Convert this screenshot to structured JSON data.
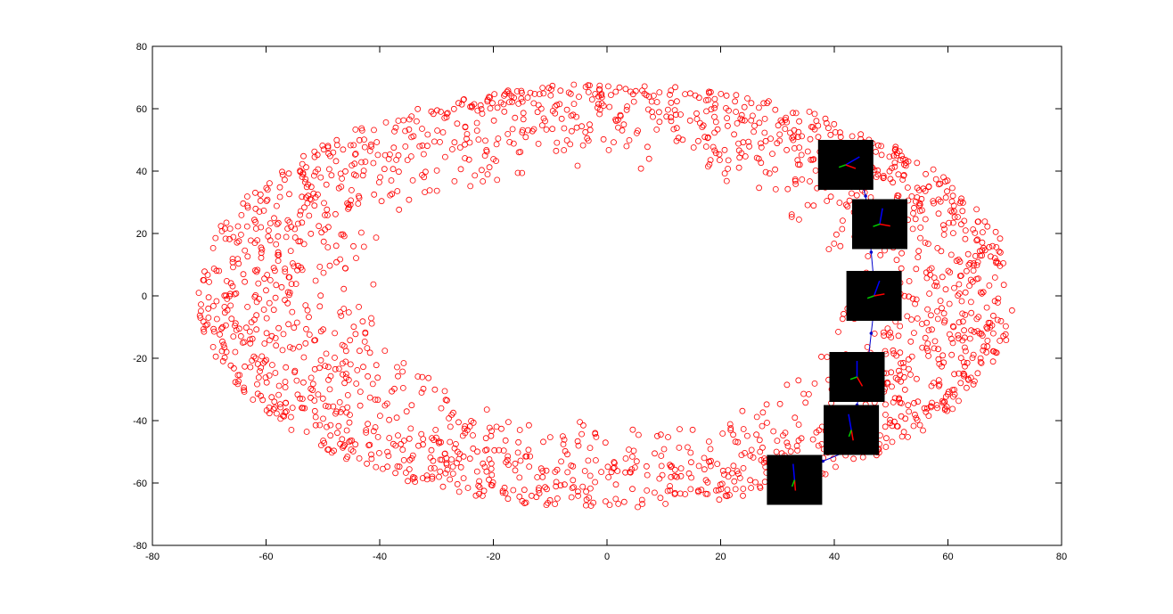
{
  "chart_data": {
    "type": "scatter",
    "title": "",
    "xlabel": "",
    "ylabel": "",
    "xlim": [
      -80,
      80
    ],
    "ylim": [
      -80,
      80
    ],
    "grid": false,
    "legend": "none",
    "x_ticks": [
      "-80",
      "-60",
      "-40",
      "-20",
      "0",
      "20",
      "40",
      "60",
      "80"
    ],
    "y_ticks": [
      "-80",
      "-60",
      "-40",
      "-20",
      "0",
      "20",
      "40",
      "60",
      "80"
    ],
    "series": [
      {
        "marker": "circle-open",
        "color": "#ff0000",
        "region": {
          "shape": "elliptical-annulus",
          "center": [
            0,
            0
          ],
          "outer_radii": [
            72,
            68
          ],
          "inner_radii": [
            40,
            40
          ],
          "approx_point_count": 2000
        }
      },
      {
        "marker": "line-with-points",
        "color": "#0000cc",
        "points": [
          [
            33,
            -57
          ],
          [
            38,
            -53
          ],
          [
            42,
            -50
          ],
          [
            44,
            -43
          ],
          [
            44,
            -35
          ],
          [
            45,
            -27
          ],
          [
            46,
            -20
          ],
          [
            46.5,
            -12
          ],
          [
            47,
            -4
          ],
          [
            47,
            4
          ],
          [
            46.5,
            14
          ],
          [
            46,
            24
          ],
          [
            45.5,
            32
          ],
          [
            44,
            42
          ]
        ]
      }
    ],
    "insets": [
      {
        "x": 33,
        "y": -59,
        "marker_angles": [
          95,
          275,
          250
        ]
      },
      {
        "x": 43,
        "y": -43,
        "marker_angles": [
          100,
          280,
          250
        ]
      },
      {
        "x": 44,
        "y": -26,
        "marker_angles": [
          90,
          300,
          200
        ]
      },
      {
        "x": 47,
        "y": 0,
        "marker_angles": [
          70,
          10,
          200
        ]
      },
      {
        "x": 48,
        "y": 23,
        "marker_angles": [
          80,
          350,
          200
        ]
      },
      {
        "x": 42,
        "y": 42,
        "marker_angles": [
          30,
          340,
          200
        ]
      }
    ],
    "colors": {
      "points": "#ff0000",
      "trajectory": "#0000cc",
      "inset_background": "#000000",
      "axis": "#000000"
    }
  }
}
